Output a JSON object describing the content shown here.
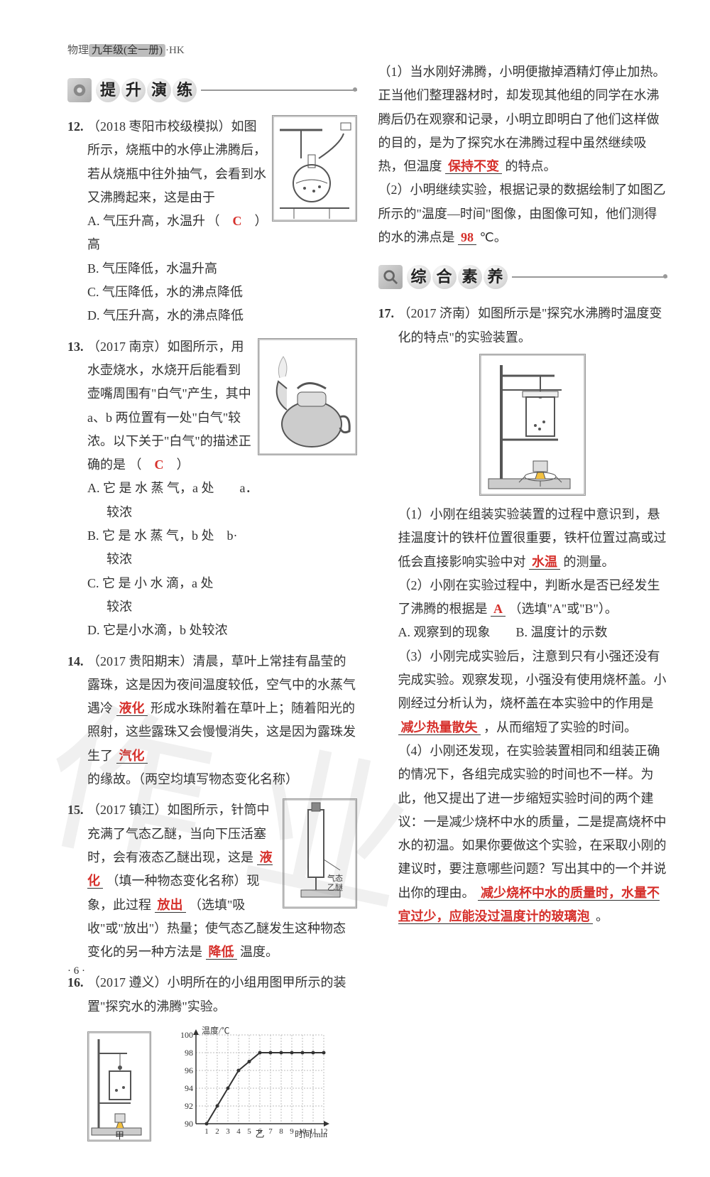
{
  "header": {
    "subject": "物理",
    "grade": "九年级(全一册)",
    "edition": "·HK"
  },
  "sections": {
    "advance": {
      "chars": [
        "提",
        "升",
        "演",
        "练"
      ]
    },
    "comprehensive": {
      "chars": [
        "综",
        "合",
        "素",
        "养"
      ]
    }
  },
  "q12": {
    "num": "12.",
    "src": "（2018 枣阳市校级模拟）",
    "stem1": "如图所示，烧瓶中的水停止沸腾后，若从烧瓶中往外抽气，会看到水又沸腾起来，这是由于",
    "paren_open": "（　",
    "answer": "C",
    "paren_close": "　）",
    "A": "A. 气压升高，水温升高",
    "B": "B. 气压降低，水温升高",
    "C": "C. 气压降低，水的沸点降低",
    "D": "D. 气压升高，水的沸点降低"
  },
  "q13": {
    "num": "13.",
    "src": "（2017 南京）",
    "stem": "如图所示，用水壶烧水，水烧开后能看到壶嘴周围有\"白气\"产生，其中 a、b 两位置有一处\"白气\"较浓。以下关于\"白气\"的描述正确的是",
    "paren_open": "（　",
    "answer": "C",
    "paren_close": "　）",
    "A": "A. 它 是 水 蒸 气，a 处　　a．",
    "A2": "较浓",
    "B": "B. 它 是 水 蒸 气，b 处　b·",
    "B2": "较浓",
    "C": "C. 它 是 小 水 滴，a 处",
    "C2": "较浓",
    "D": "D. 它是小水滴，b 处较浓"
  },
  "q14": {
    "num": "14.",
    "src": "（2017 贵阳期末）",
    "t1": "清晨，草叶上常挂有晶莹的露珠，这是因为夜间温度较低，空气中的水蒸气遇冷",
    "ans1": "液化",
    "t2": "形成水珠附着在草叶上；随着阳光的照射，这些露珠又会慢慢消失，这是因为露珠发生了",
    "ans2": "汽化",
    "t3": "的缘故。（两空均填写物态变化名称）"
  },
  "q15": {
    "num": "15.",
    "src": "（2017 镇江）",
    "t1": "如图所示，针筒中充满了气态乙醚，当向下压活塞时，会有液态乙醚出现，这是",
    "ans1": "液化",
    "t2": "（填一种物态变化名称）现象，此过程",
    "ans2": "放出",
    "t3": "（选填\"吸收\"或\"放出\"）热量；使气态乙醚发生这种物态变化的另一种方法是",
    "ans3": "降低",
    "t4": "温度。",
    "fig_label": "气态乙醚"
  },
  "q16": {
    "num": "16.",
    "src": "（2017 遵义）",
    "stem": "小明所在的小组用图甲所示的装置\"探究水的沸腾\"实验。",
    "fig_left_label": "甲",
    "fig_right_label": "乙",
    "chart": {
      "ylabel": "温度/℃",
      "xlabel": "时间/min",
      "yticks": [
        90,
        92,
        94,
        96,
        98,
        100
      ],
      "xticks": [
        1,
        2,
        3,
        4,
        5,
        6,
        7,
        8,
        9,
        10,
        11,
        12
      ],
      "points": [
        {
          "x": 1,
          "y": 90
        },
        {
          "x": 2,
          "y": 92
        },
        {
          "x": 3,
          "y": 94
        },
        {
          "x": 4,
          "y": 96
        },
        {
          "x": 5,
          "y": 97
        },
        {
          "x": 6,
          "y": 98
        },
        {
          "x": 7,
          "y": 98
        },
        {
          "x": 8,
          "y": 98
        },
        {
          "x": 9,
          "y": 98
        },
        {
          "x": 10,
          "y": 98
        },
        {
          "x": 11,
          "y": 98
        },
        {
          "x": 12,
          "y": 98
        }
      ],
      "line_color": "#333333",
      "grid_color": "#bdbdbd",
      "bg": "#ffffff",
      "font_size": 12
    },
    "p1a": "（1）当水刚好沸腾，小明便撤掉酒精灯停止加热。正当他们整理器材时，却发现其他组的同学在水沸腾后仍在观察和记录，小明立即明白了他们这样做的目的，是为了探究水在沸腾过程中虽然继续吸热，但温度",
    "ans_p1": "保持不变",
    "p1b": "的特点。",
    "p2a": "（2）小明继续实验，根据记录的数据绘制了如图乙所示的\"温度—时间\"图像，由图像可知，他们测得的水的沸点是",
    "ans_p2": "98",
    "p2b": "℃。"
  },
  "q17": {
    "num": "17.",
    "src": "（2017 济南）",
    "stem": "如图所示是\"探究水沸腾时温度变化的特点\"的实验装置。",
    "p1a": "（1）小刚在组装实验装置的过程中意识到，悬挂温度计的铁杆位置很重要，铁杆位置过高或过低会直接影响实验中对",
    "ans1": "水温",
    "p1b": "的测量。",
    "p2a": "（2）小刚在实验过程中，判断水是否已经发生了沸腾的根据是",
    "ans2": "A",
    "p2b": "（选填\"A\"或\"B\"）。",
    "optA": "A. 观察到的现象　　B. 温度计的示数",
    "p3a": "（3）小刚完成实验后，注意到只有小强还没有完成实验。观察发现，小强没有使用烧杯盖。小刚经过分析认为，烧杯盖在本实验中的作用是",
    "ans3": "减少热量散失",
    "p3b": "，从而缩短了实验的时间。",
    "p4a": "（4）小刚还发现，在实验装置相同和组装正确的情况下，各组完成实验的时间也不一样。为此，他又提出了进一步缩短实验时间的两个建议：一是减少烧杯中水的质量，二是提高烧杯中水的初温。如果你要做这个实验，在采取小刚的建议时，要注意哪些问题？写出其中的一个并说出你的理由。",
    "ans4": "减少烧杯中水的质量时，水量不宜过少，应能没过温度计的玻璃泡",
    "p4b": "。"
  },
  "page_num": "· 6 ·",
  "watermark": "作业"
}
